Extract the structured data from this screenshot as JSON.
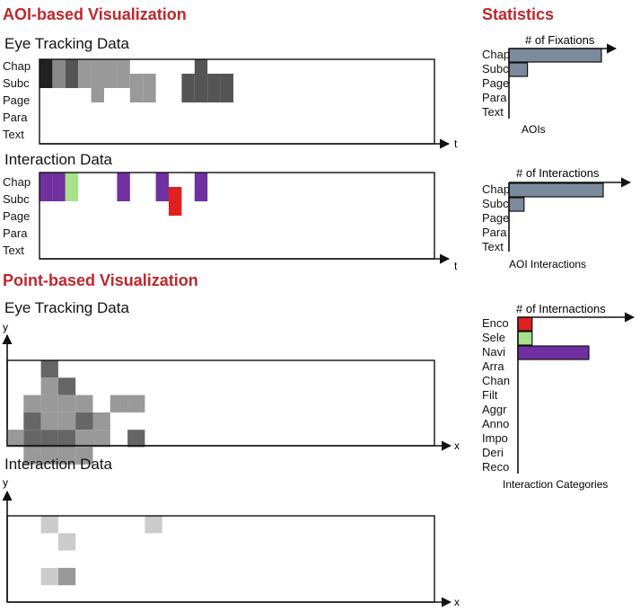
{
  "aoi_section": {
    "title": "AOI-based Visualization",
    "eye_title": "Eye Tracking Data",
    "interaction_title": "Interaction Data",
    "aoi_labels": [
      "Chap",
      "Subc",
      "Page",
      "Para",
      "Text"
    ],
    "time_axis_label": "t"
  },
  "stats_section": {
    "title": "Statistics",
    "fixations": {
      "title": "# of Fixations",
      "labels": [
        "Chap",
        "Subc",
        "Page",
        "Para",
        "Text"
      ],
      "values": [
        100,
        20,
        0,
        0,
        0
      ],
      "caption": "AOIs"
    },
    "interactions": {
      "title": "# of Interactions",
      "labels": [
        "Chap",
        "Subc",
        "Page",
        "Para",
        "Text"
      ],
      "values": [
        100,
        16,
        0,
        0,
        0
      ],
      "caption": "AOI Interactions"
    },
    "categories": {
      "title": "# of Internactions",
      "labels": [
        "Enco",
        "Sele",
        "Navi",
        "Arra",
        "Chan",
        "Filt",
        "Aggr",
        "Anno",
        "Impo",
        "Deri",
        "Reco"
      ],
      "values": [
        1,
        1,
        5,
        0,
        0,
        0,
        0,
        0,
        0,
        0,
        0
      ],
      "colors": [
        "#e02020",
        "#a8e08c",
        "#7030a0",
        "",
        "",
        "",
        "",
        "",
        "",
        "",
        ""
      ],
      "caption": "Interaction Categories"
    }
  },
  "point_section": {
    "title": "Point-based Visualization",
    "eye_title": "Eye Tracking Data",
    "interaction_title": "Interaction Data",
    "x_axis_label": "x",
    "y_axis_label": "y"
  },
  "colors": {
    "accent": "#c0262d",
    "bar_fill": "#7b8a9c",
    "purple": "#7030a0",
    "green": "#a8e08c",
    "red": "#e02020"
  },
  "chart_data": [
    {
      "type": "heatmap",
      "name": "AOI eye tracking",
      "rows": [
        "Chap",
        "Subc",
        "Page",
        "Para",
        "Text"
      ],
      "cells": [
        {
          "t": 0,
          "row": 0,
          "span": 2,
          "shade": "#222"
        },
        {
          "t": 1,
          "row": 0,
          "span": 2,
          "shade": "#888"
        },
        {
          "t": 2,
          "row": 0,
          "span": 2,
          "shade": "#555"
        },
        {
          "t": 3,
          "row": 0,
          "span": 2,
          "shade": "#999"
        },
        {
          "t": 4,
          "row": 0,
          "span": 1,
          "shade": "#999"
        },
        {
          "t": 4,
          "row": 1,
          "span": 1,
          "shade": "#999"
        },
        {
          "t": 4,
          "row": 2,
          "span": 1,
          "shade": "#999"
        },
        {
          "t": 5,
          "row": 0,
          "span": 1,
          "shade": "#999"
        },
        {
          "t": 5,
          "row": 1,
          "span": 1,
          "shade": "#999"
        },
        {
          "t": 6,
          "row": 0,
          "span": 2,
          "shade": "#999"
        },
        {
          "t": 7,
          "row": 1,
          "span": 1,
          "shade": "#999"
        },
        {
          "t": 7,
          "row": 2,
          "span": 1,
          "shade": "#999"
        },
        {
          "t": 8,
          "row": 1,
          "span": 2,
          "shade": "#999"
        },
        {
          "t": 11,
          "row": 1,
          "span": 2,
          "shade": "#555"
        },
        {
          "t": 12,
          "row": 0,
          "span": 3,
          "shade": "#555"
        },
        {
          "t": 13,
          "row": 1,
          "span": 2,
          "shade": "#555"
        },
        {
          "t": 14,
          "row": 1,
          "span": 2,
          "shade": "#555"
        }
      ]
    },
    {
      "type": "heatmap",
      "name": "AOI interactions",
      "rows": [
        "Chap",
        "Subc",
        "Page",
        "Para",
        "Text"
      ],
      "cells": [
        {
          "t": 0,
          "row": 0,
          "span": 2,
          "shade": "#7030a0"
        },
        {
          "t": 1,
          "row": 0,
          "span": 2,
          "shade": "#7030a0"
        },
        {
          "t": 2,
          "row": 0,
          "span": 2,
          "shade": "#a8e08c"
        },
        {
          "t": 6,
          "row": 0,
          "span": 2,
          "shade": "#7030a0"
        },
        {
          "t": 9,
          "row": 0,
          "span": 2,
          "shade": "#7030a0"
        },
        {
          "t": 10,
          "row": 1,
          "span": 2,
          "shade": "#e02020"
        },
        {
          "t": 12,
          "row": 0,
          "span": 2,
          "shade": "#7030a0"
        }
      ]
    },
    {
      "type": "heatmap",
      "name": "Point eye tracking",
      "cells": [
        {
          "col": 2,
          "row": 0,
          "shade": "#666"
        },
        {
          "col": 2,
          "row": 1,
          "shade": "#999"
        },
        {
          "col": 3,
          "row": 1,
          "shade": "#666"
        },
        {
          "col": 1,
          "row": 2,
          "shade": "#999"
        },
        {
          "col": 2,
          "row": 2,
          "shade": "#999"
        },
        {
          "col": 3,
          "row": 2,
          "shade": "#999"
        },
        {
          "col": 4,
          "row": 2,
          "shade": "#999"
        },
        {
          "col": 6,
          "row": 2,
          "shade": "#999"
        },
        {
          "col": 7,
          "row": 2,
          "shade": "#999"
        },
        {
          "col": 1,
          "row": 3,
          "shade": "#666"
        },
        {
          "col": 2,
          "row": 3,
          "shade": "#999"
        },
        {
          "col": 3,
          "row": 3,
          "shade": "#999"
        },
        {
          "col": 4,
          "row": 3,
          "shade": "#666"
        },
        {
          "col": 5,
          "row": 3,
          "shade": "#999"
        },
        {
          "col": 0,
          "row": 4,
          "shade": "#999"
        },
        {
          "col": 1,
          "row": 4,
          "shade": "#666"
        },
        {
          "col": 2,
          "row": 4,
          "shade": "#666"
        },
        {
          "col": 3,
          "row": 4,
          "shade": "#666"
        },
        {
          "col": 4,
          "row": 4,
          "shade": "#999"
        },
        {
          "col": 5,
          "row": 4,
          "shade": "#999"
        },
        {
          "col": 7,
          "row": 4,
          "shade": "#666"
        },
        {
          "col": 1,
          "row": 5,
          "shade": "#999"
        },
        {
          "col": 2,
          "row": 5,
          "shade": "#999"
        },
        {
          "col": 3,
          "row": 5,
          "shade": "#999"
        },
        {
          "col": 4,
          "row": 5,
          "shade": "#999"
        }
      ]
    },
    {
      "type": "heatmap",
      "name": "Point interactions",
      "cells": [
        {
          "col": 2,
          "row": 0,
          "shade": "#ccc"
        },
        {
          "col": 8,
          "row": 0,
          "shade": "#ccc"
        },
        {
          "col": 3,
          "row": 1,
          "shade": "#ccc"
        },
        {
          "col": 2,
          "row": 3,
          "shade": "#ccc"
        },
        {
          "col": 3,
          "row": 3,
          "shade": "#999"
        }
      ]
    }
  ]
}
